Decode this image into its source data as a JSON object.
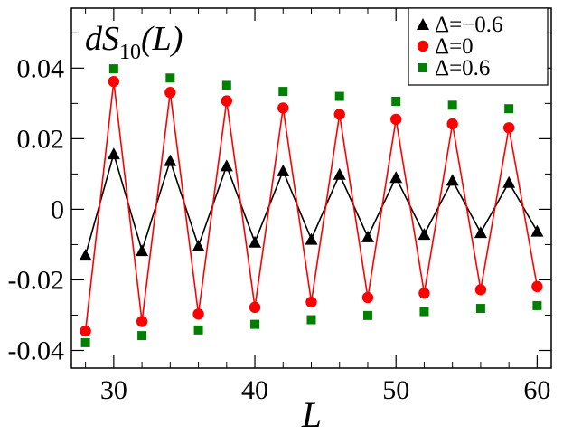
{
  "chart_data": {
    "type": "line",
    "title": "",
    "panel_label": {
      "main": "dS",
      "sub": "10",
      "arg": "(L)"
    },
    "xlabel": "L",
    "ylabel": "",
    "xlim": [
      27,
      61
    ],
    "ylim": [
      -0.045,
      0.057
    ],
    "xticks": [
      30,
      40,
      50,
      60
    ],
    "xtick_labels": [
      "30",
      "40",
      "50",
      "60"
    ],
    "yticks": [
      -0.04,
      -0.02,
      0,
      0.02,
      0.04
    ],
    "ytick_labels": [
      "-0.04",
      "-0.02",
      "0",
      "0.02",
      "0.04"
    ],
    "grid": false,
    "legend_position": "top-right",
    "x": [
      28,
      30,
      32,
      34,
      36,
      38,
      40,
      42,
      44,
      46,
      48,
      50,
      52,
      54,
      56,
      58,
      60
    ],
    "series": [
      {
        "name": "Δ=−0.6",
        "marker": "triangle",
        "color": "#000000",
        "line": true,
        "values": [
          -0.013,
          0.0157,
          -0.0117,
          0.0138,
          -0.0104,
          0.0123,
          -0.0093,
          0.0109,
          -0.0085,
          0.0099,
          -0.0078,
          0.009,
          -0.0071,
          0.0082,
          -0.0066,
          0.0076,
          -0.0062
        ]
      },
      {
        "name": "Δ=0",
        "marker": "circle",
        "color": "#ff0000",
        "line": true,
        "values": [
          -0.0345,
          0.0362,
          -0.0318,
          0.0331,
          -0.0297,
          0.0307,
          -0.0278,
          0.0287,
          -0.0263,
          0.0269,
          -0.025,
          0.0255,
          -0.0238,
          0.0242,
          -0.0228,
          0.0231,
          -0.0219
        ]
      },
      {
        "name": "Δ=0.6",
        "marker": "square",
        "color": "#008000",
        "line": false,
        "values": [
          -0.0378,
          0.0398,
          -0.0358,
          0.0372,
          -0.0342,
          0.0351,
          -0.0326,
          0.0334,
          -0.0313,
          0.032,
          -0.0301,
          0.0306,
          -0.029,
          0.0295,
          -0.0281,
          0.0285,
          -0.0273
        ]
      }
    ]
  }
}
